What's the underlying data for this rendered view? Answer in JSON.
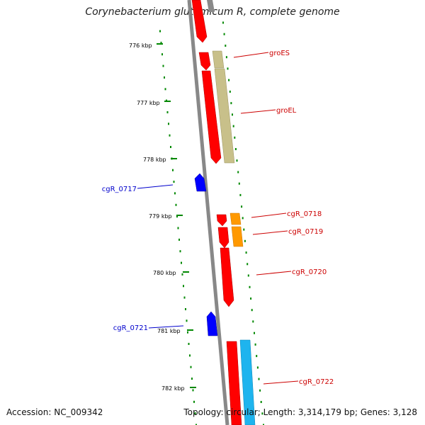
{
  "title": "Corynebacterium glutamicum R, complete genome",
  "footer": {
    "accession": "Accession: NC_009342",
    "topology": "Topology: circular; Length: 3,314,179 bp; Genes: 3,128"
  },
  "colors": {
    "backbone": "#888888",
    "forward_gene": "#ff0000",
    "reverse_gene": "#0000ff",
    "chaperonin": "#c8c08a",
    "hypothetical": "#ff9900",
    "cyan_feature": "#1eb4ee",
    "tick": "#008800",
    "forward_label": "#cc0000",
    "reverse_label": "#0000cc"
  },
  "scale": {
    "unit": "kbp",
    "ticks": [
      "776 kbp",
      "777 kbp",
      "778 kbp",
      "779 kbp",
      "780 kbp",
      "781 kbp",
      "782 kbp"
    ]
  },
  "genes": [
    {
      "label": "groES",
      "strand": "forward",
      "color_role": "forward_label"
    },
    {
      "label": "groEL",
      "strand": "forward",
      "color_role": "forward_label"
    },
    {
      "label": "cgR_0717",
      "strand": "reverse",
      "color_role": "reverse_label"
    },
    {
      "label": "cgR_0718",
      "strand": "forward",
      "color_role": "forward_label"
    },
    {
      "label": "cgR_0719",
      "strand": "forward",
      "color_role": "forward_label"
    },
    {
      "label": "cgR_0720",
      "strand": "forward",
      "color_role": "forward_label"
    },
    {
      "label": "cgR_0721",
      "strand": "reverse",
      "color_role": "reverse_label"
    },
    {
      "label": "cgR_0722",
      "strand": "forward",
      "color_role": "forward_label"
    }
  ]
}
